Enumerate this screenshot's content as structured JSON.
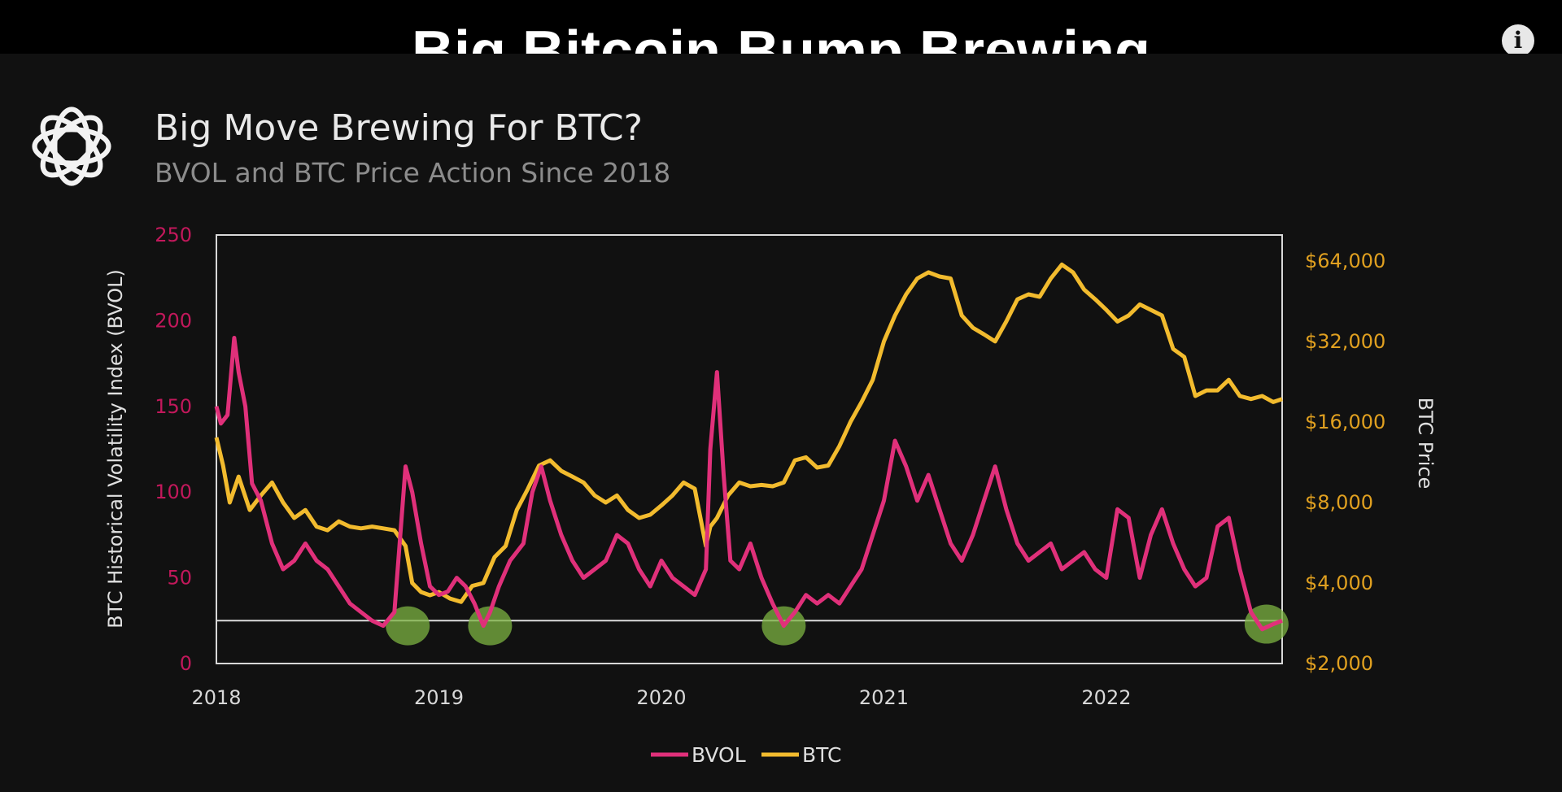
{
  "video": {
    "title": "Big Bitcoin Bump Brewing",
    "info_icon": "info-icon",
    "info_glyph": "i"
  },
  "slide": {
    "logo_icon": "knot-logo-icon"
  },
  "colors": {
    "bvol": "#e0307a",
    "btc": "#f2bb2e",
    "left_axis": "#c2185b",
    "right_axis": "#e0a020",
    "marker": "#7cb342"
  },
  "chart_data": {
    "type": "line",
    "title": "Big Move Brewing For BTC?",
    "subtitle": "BVOL and BTC Price Action Since 2018",
    "xlabel": "",
    "ylabel": "BTC Historical Volatility Index (BVOL)",
    "y2label": "BTC Price",
    "x_ticks": [
      "2018",
      "2019",
      "2020",
      "2021",
      "2022"
    ],
    "x_range": [
      2018.0,
      2022.79
    ],
    "ylim": [
      0,
      250
    ],
    "y_ticks": [
      "0",
      "50",
      "100",
      "150",
      "200",
      "250"
    ],
    "y2_scale": "log2",
    "y2lim": [
      2000,
      80000
    ],
    "y2_ticks": [
      {
        "value": 2000,
        "label": "$2,000"
      },
      {
        "value": 4000,
        "label": "$4,000"
      },
      {
        "value": 8000,
        "label": "$8,000"
      },
      {
        "value": 16000,
        "label": "$16,000"
      },
      {
        "value": 32000,
        "label": "$32,000"
      },
      {
        "value": 64000,
        "label": "$64,000"
      }
    ],
    "reference_line": 25,
    "highlighted_lows": [
      {
        "x": 2018.86,
        "y": 22
      },
      {
        "x": 2019.23,
        "y": 22
      },
      {
        "x": 2020.55,
        "y": 22
      },
      {
        "x": 2022.72,
        "y": 23
      }
    ],
    "legend": [
      "BVOL",
      "BTC"
    ],
    "series": [
      {
        "name": "BVOL",
        "axis": "left",
        "x": [
          2018.0,
          2018.02,
          2018.05,
          2018.08,
          2018.1,
          2018.13,
          2018.16,
          2018.2,
          2018.25,
          2018.3,
          2018.35,
          2018.4,
          2018.45,
          2018.5,
          2018.55,
          2018.6,
          2018.65,
          2018.7,
          2018.75,
          2018.8,
          2018.85,
          2018.88,
          2018.92,
          2018.96,
          2019.0,
          2019.04,
          2019.08,
          2019.12,
          2019.16,
          2019.2,
          2019.23,
          2019.27,
          2019.32,
          2019.38,
          2019.42,
          2019.46,
          2019.5,
          2019.55,
          2019.6,
          2019.65,
          2019.7,
          2019.75,
          2019.8,
          2019.85,
          2019.9,
          2019.95,
          2020.0,
          2020.05,
          2020.1,
          2020.15,
          2020.2,
          2020.22,
          2020.25,
          2020.28,
          2020.31,
          2020.35,
          2020.4,
          2020.45,
          2020.5,
          2020.55,
          2020.6,
          2020.65,
          2020.7,
          2020.75,
          2020.8,
          2020.85,
          2020.9,
          2020.95,
          2021.0,
          2021.05,
          2021.1,
          2021.15,
          2021.2,
          2021.25,
          2021.3,
          2021.35,
          2021.4,
          2021.45,
          2021.5,
          2021.55,
          2021.6,
          2021.65,
          2021.7,
          2021.75,
          2021.8,
          2021.85,
          2021.9,
          2021.95,
          2022.0,
          2022.05,
          2022.1,
          2022.15,
          2022.2,
          2022.25,
          2022.3,
          2022.35,
          2022.4,
          2022.45,
          2022.5,
          2022.55,
          2022.6,
          2022.65,
          2022.7,
          2022.75,
          2022.79
        ],
        "values": [
          150,
          140,
          145,
          190,
          170,
          150,
          105,
          95,
          70,
          55,
          60,
          70,
          60,
          55,
          45,
          35,
          30,
          25,
          22,
          30,
          115,
          100,
          70,
          45,
          40,
          42,
          50,
          45,
          35,
          22,
          30,
          45,
          60,
          70,
          100,
          115,
          95,
          75,
          60,
          50,
          55,
          60,
          75,
          70,
          55,
          45,
          60,
          50,
          45,
          40,
          55,
          125,
          170,
          110,
          60,
          55,
          70,
          50,
          35,
          22,
          30,
          40,
          35,
          40,
          35,
          45,
          55,
          75,
          95,
          130,
          115,
          95,
          110,
          90,
          70,
          60,
          75,
          95,
          115,
          90,
          70,
          60,
          65,
          70,
          55,
          60,
          65,
          55,
          50,
          90,
          85,
          50,
          75,
          90,
          70,
          55,
          45,
          50,
          80,
          85,
          55,
          30,
          20,
          23,
          25
        ]
      },
      {
        "name": "BTC",
        "axis": "right",
        "x": [
          2018.0,
          2018.03,
          2018.06,
          2018.1,
          2018.15,
          2018.2,
          2018.25,
          2018.3,
          2018.35,
          2018.4,
          2018.45,
          2018.5,
          2018.55,
          2018.6,
          2018.65,
          2018.7,
          2018.75,
          2018.8,
          2018.85,
          2018.88,
          2018.92,
          2018.96,
          2019.0,
          2019.05,
          2019.1,
          2019.15,
          2019.2,
          2019.25,
          2019.3,
          2019.35,
          2019.4,
          2019.45,
          2019.5,
          2019.55,
          2019.6,
          2019.65,
          2019.7,
          2019.75,
          2019.8,
          2019.85,
          2019.9,
          2019.95,
          2020.0,
          2020.05,
          2020.1,
          2020.15,
          2020.2,
          2020.22,
          2020.25,
          2020.3,
          2020.35,
          2020.4,
          2020.45,
          2020.5,
          2020.55,
          2020.6,
          2020.65,
          2020.7,
          2020.75,
          2020.8,
          2020.85,
          2020.9,
          2020.95,
          2021.0,
          2021.05,
          2021.1,
          2021.15,
          2021.2,
          2021.25,
          2021.3,
          2021.35,
          2021.4,
          2021.45,
          2021.5,
          2021.55,
          2021.6,
          2021.65,
          2021.7,
          2021.75,
          2021.8,
          2021.85,
          2021.9,
          2021.95,
          2022.0,
          2022.05,
          2022.1,
          2022.15,
          2022.2,
          2022.25,
          2022.3,
          2022.35,
          2022.4,
          2022.45,
          2022.5,
          2022.55,
          2022.6,
          2022.65,
          2022.7,
          2022.75,
          2022.79
        ],
        "values": [
          14000,
          11000,
          8000,
          10000,
          7500,
          8500,
          9500,
          8000,
          7000,
          7500,
          6500,
          6300,
          6800,
          6500,
          6400,
          6500,
          6400,
          6300,
          5500,
          4000,
          3700,
          3600,
          3700,
          3500,
          3400,
          3900,
          4000,
          5000,
          5500,
          7500,
          9000,
          11000,
          11500,
          10500,
          10000,
          9500,
          8500,
          8000,
          8500,
          7500,
          7000,
          7200,
          7800,
          8500,
          9500,
          9000,
          5500,
          6500,
          7000,
          8500,
          9500,
          9200,
          9300,
          9200,
          9500,
          11500,
          11800,
          10800,
          11000,
          13000,
          16000,
          19000,
          23000,
          32000,
          40000,
          48000,
          55000,
          58000,
          56000,
          55000,
          40000,
          36000,
          34000,
          32000,
          38000,
          46000,
          48000,
          47000,
          55000,
          62000,
          58000,
          50000,
          46000,
          42000,
          38000,
          40000,
          44000,
          42000,
          40000,
          30000,
          28000,
          20000,
          21000,
          21000,
          23000,
          20000,
          19500,
          20000,
          19000,
          19500
        ]
      }
    ]
  }
}
